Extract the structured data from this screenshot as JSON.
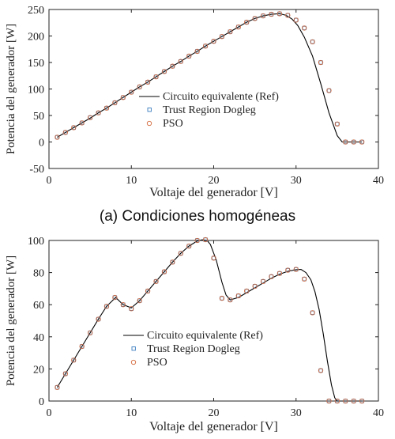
{
  "chart_data": [
    {
      "type": "line",
      "caption": "(a)   Condiciones homogéneas",
      "xlabel": "Voltaje del generador [V]",
      "ylabel": "Potencia del generador [W]",
      "xlim": [
        0,
        40
      ],
      "ylim": [
        -50,
        250
      ],
      "xticks": [
        0,
        10,
        20,
        30,
        40
      ],
      "yticks": [
        -50,
        0,
        50,
        100,
        150,
        200,
        250
      ],
      "grid": false,
      "legend_position": "center-right",
      "series": [
        {
          "name": "Circuito equivalente (Ref)",
          "kind": "line",
          "color": "#000000",
          "x": [
            1,
            2,
            3,
            4,
            5,
            6,
            7,
            8,
            9,
            10,
            11,
            12,
            13,
            14,
            15,
            16,
            17,
            18,
            19,
            20,
            21,
            22,
            23,
            24,
            25,
            26,
            27,
            28,
            28.8,
            29.5,
            30.2,
            31,
            32,
            33,
            34,
            35,
            35.6,
            36,
            37,
            38
          ],
          "y": [
            9,
            18,
            27,
            36,
            45,
            55,
            64,
            74,
            84,
            94,
            104,
            113,
            123,
            133,
            143,
            152,
            162,
            171,
            181,
            190,
            199,
            208,
            217,
            226,
            233,
            238,
            241,
            242,
            239,
            232,
            220,
            198,
            162,
            110,
            55,
            12,
            0,
            0,
            0,
            0
          ]
        },
        {
          "name": "Trust Region Dogleg",
          "kind": "square",
          "color": "#3a7dbf",
          "x": [
            1,
            2,
            3,
            4,
            5,
            6,
            7,
            8,
            9,
            10,
            11,
            12,
            13,
            14,
            15,
            16,
            17,
            18,
            19,
            20,
            21,
            22,
            23,
            24,
            25,
            26,
            27,
            28,
            29,
            30,
            31,
            32,
            33,
            34,
            35,
            36,
            37,
            38
          ],
          "y": [
            9,
            18,
            27,
            36,
            46,
            55,
            64,
            74,
            84,
            94,
            104,
            113,
            123,
            133,
            143,
            152,
            162,
            171,
            181,
            190,
            199,
            208,
            217,
            226,
            233,
            238,
            241,
            242,
            239,
            230,
            215,
            189,
            150,
            97,
            34,
            0,
            0,
            0
          ]
        },
        {
          "name": "PSO",
          "kind": "circle",
          "color": "#d4683a",
          "x": [
            1,
            2,
            3,
            4,
            5,
            6,
            7,
            8,
            9,
            10,
            11,
            12,
            13,
            14,
            15,
            16,
            17,
            18,
            19,
            20,
            21,
            22,
            23,
            24,
            25,
            26,
            27,
            28,
            29,
            30,
            31,
            32,
            33,
            34,
            35,
            36,
            37,
            38
          ],
          "y": [
            9,
            18,
            27,
            36,
            46,
            55,
            64,
            74,
            84,
            94,
            104,
            113,
            123,
            133,
            143,
            152,
            162,
            171,
            181,
            190,
            199,
            208,
            217,
            226,
            233,
            238,
            241,
            242,
            239,
            230,
            215,
            189,
            150,
            97,
            34,
            0,
            0,
            0
          ]
        }
      ]
    },
    {
      "type": "line",
      "xlabel": "Voltaje del generador [V]",
      "ylabel": "Potencia del generador [W]",
      "xlim": [
        0,
        40
      ],
      "ylim": [
        0,
        100
      ],
      "xticks": [
        0,
        10,
        20,
        30,
        40
      ],
      "yticks": [
        0,
        20,
        40,
        60,
        80,
        100
      ],
      "grid": false,
      "legend_position": "bottom-right",
      "series": [
        {
          "name": "Circuito equivalente (Ref)",
          "kind": "line",
          "color": "#000000",
          "x": [
            1,
            2,
            3,
            4,
            5,
            6,
            7,
            7.6,
            8.1,
            8.6,
            9,
            10,
            11,
            12,
            13,
            14,
            15,
            16,
            17,
            18,
            18.6,
            19.2,
            19.6,
            20.3,
            21,
            21.5,
            22,
            23,
            24,
            25,
            26,
            27,
            28,
            29,
            30,
            30.6,
            31.2,
            31.8,
            32.3,
            32.8,
            33.3,
            33.8,
            34.3,
            34.7,
            35,
            36,
            37,
            38
          ],
          "y": [
            8.5,
            17,
            25.5,
            34,
            42.5,
            51,
            59,
            62,
            64.5,
            62,
            60,
            58,
            62.5,
            68.5,
            74.5,
            80.5,
            86.5,
            92,
            96.5,
            99.7,
            100.4,
            100,
            97.5,
            88,
            74,
            66,
            63,
            64.5,
            67.5,
            70.5,
            73.5,
            76.5,
            79,
            80.8,
            81.8,
            82,
            80,
            75.5,
            68,
            57,
            42,
            25,
            10,
            2,
            0,
            0,
            0,
            0
          ]
        },
        {
          "name": "Trust Region Dogleg",
          "kind": "square",
          "color": "#3a7dbf",
          "x": [
            1,
            2,
            3,
            4,
            5,
            6,
            7,
            8,
            9,
            10,
            11,
            12,
            13,
            14,
            15,
            16,
            17,
            18,
            19,
            20,
            21,
            22,
            23,
            24,
            25,
            26,
            27,
            28,
            29,
            30,
            31,
            32,
            33,
            34,
            35,
            36,
            37,
            38
          ],
          "y": [
            8.5,
            17,
            25.5,
            34,
            42.5,
            51,
            59,
            64.5,
            60,
            57.5,
            62.5,
            68.5,
            74.5,
            80.5,
            86.5,
            92,
            96.5,
            100,
            100.5,
            89,
            64,
            63,
            65.5,
            68.5,
            71.5,
            74.5,
            77.5,
            79.5,
            81.5,
            82,
            76,
            55,
            19,
            0,
            0,
            0,
            0,
            0
          ]
        },
        {
          "name": "PSO",
          "kind": "circle",
          "color": "#d4683a",
          "x": [
            1,
            2,
            3,
            4,
            5,
            6,
            7,
            8,
            9,
            10,
            11,
            12,
            13,
            14,
            15,
            16,
            17,
            18,
            19,
            20,
            21,
            22,
            23,
            24,
            25,
            26,
            27,
            28,
            29,
            30,
            31,
            32,
            33,
            34,
            35,
            36,
            37,
            38
          ],
          "y": [
            8.5,
            17,
            25.5,
            34,
            42.5,
            51,
            59,
            64.5,
            60,
            57.5,
            62.5,
            68.5,
            74.5,
            80.5,
            86.5,
            92,
            96.5,
            100,
            100.5,
            89,
            64,
            63,
            65.5,
            68.5,
            71.5,
            74.5,
            77.5,
            79.5,
            81.5,
            82,
            76,
            55,
            19,
            0,
            0,
            0,
            0,
            0
          ]
        }
      ]
    }
  ]
}
